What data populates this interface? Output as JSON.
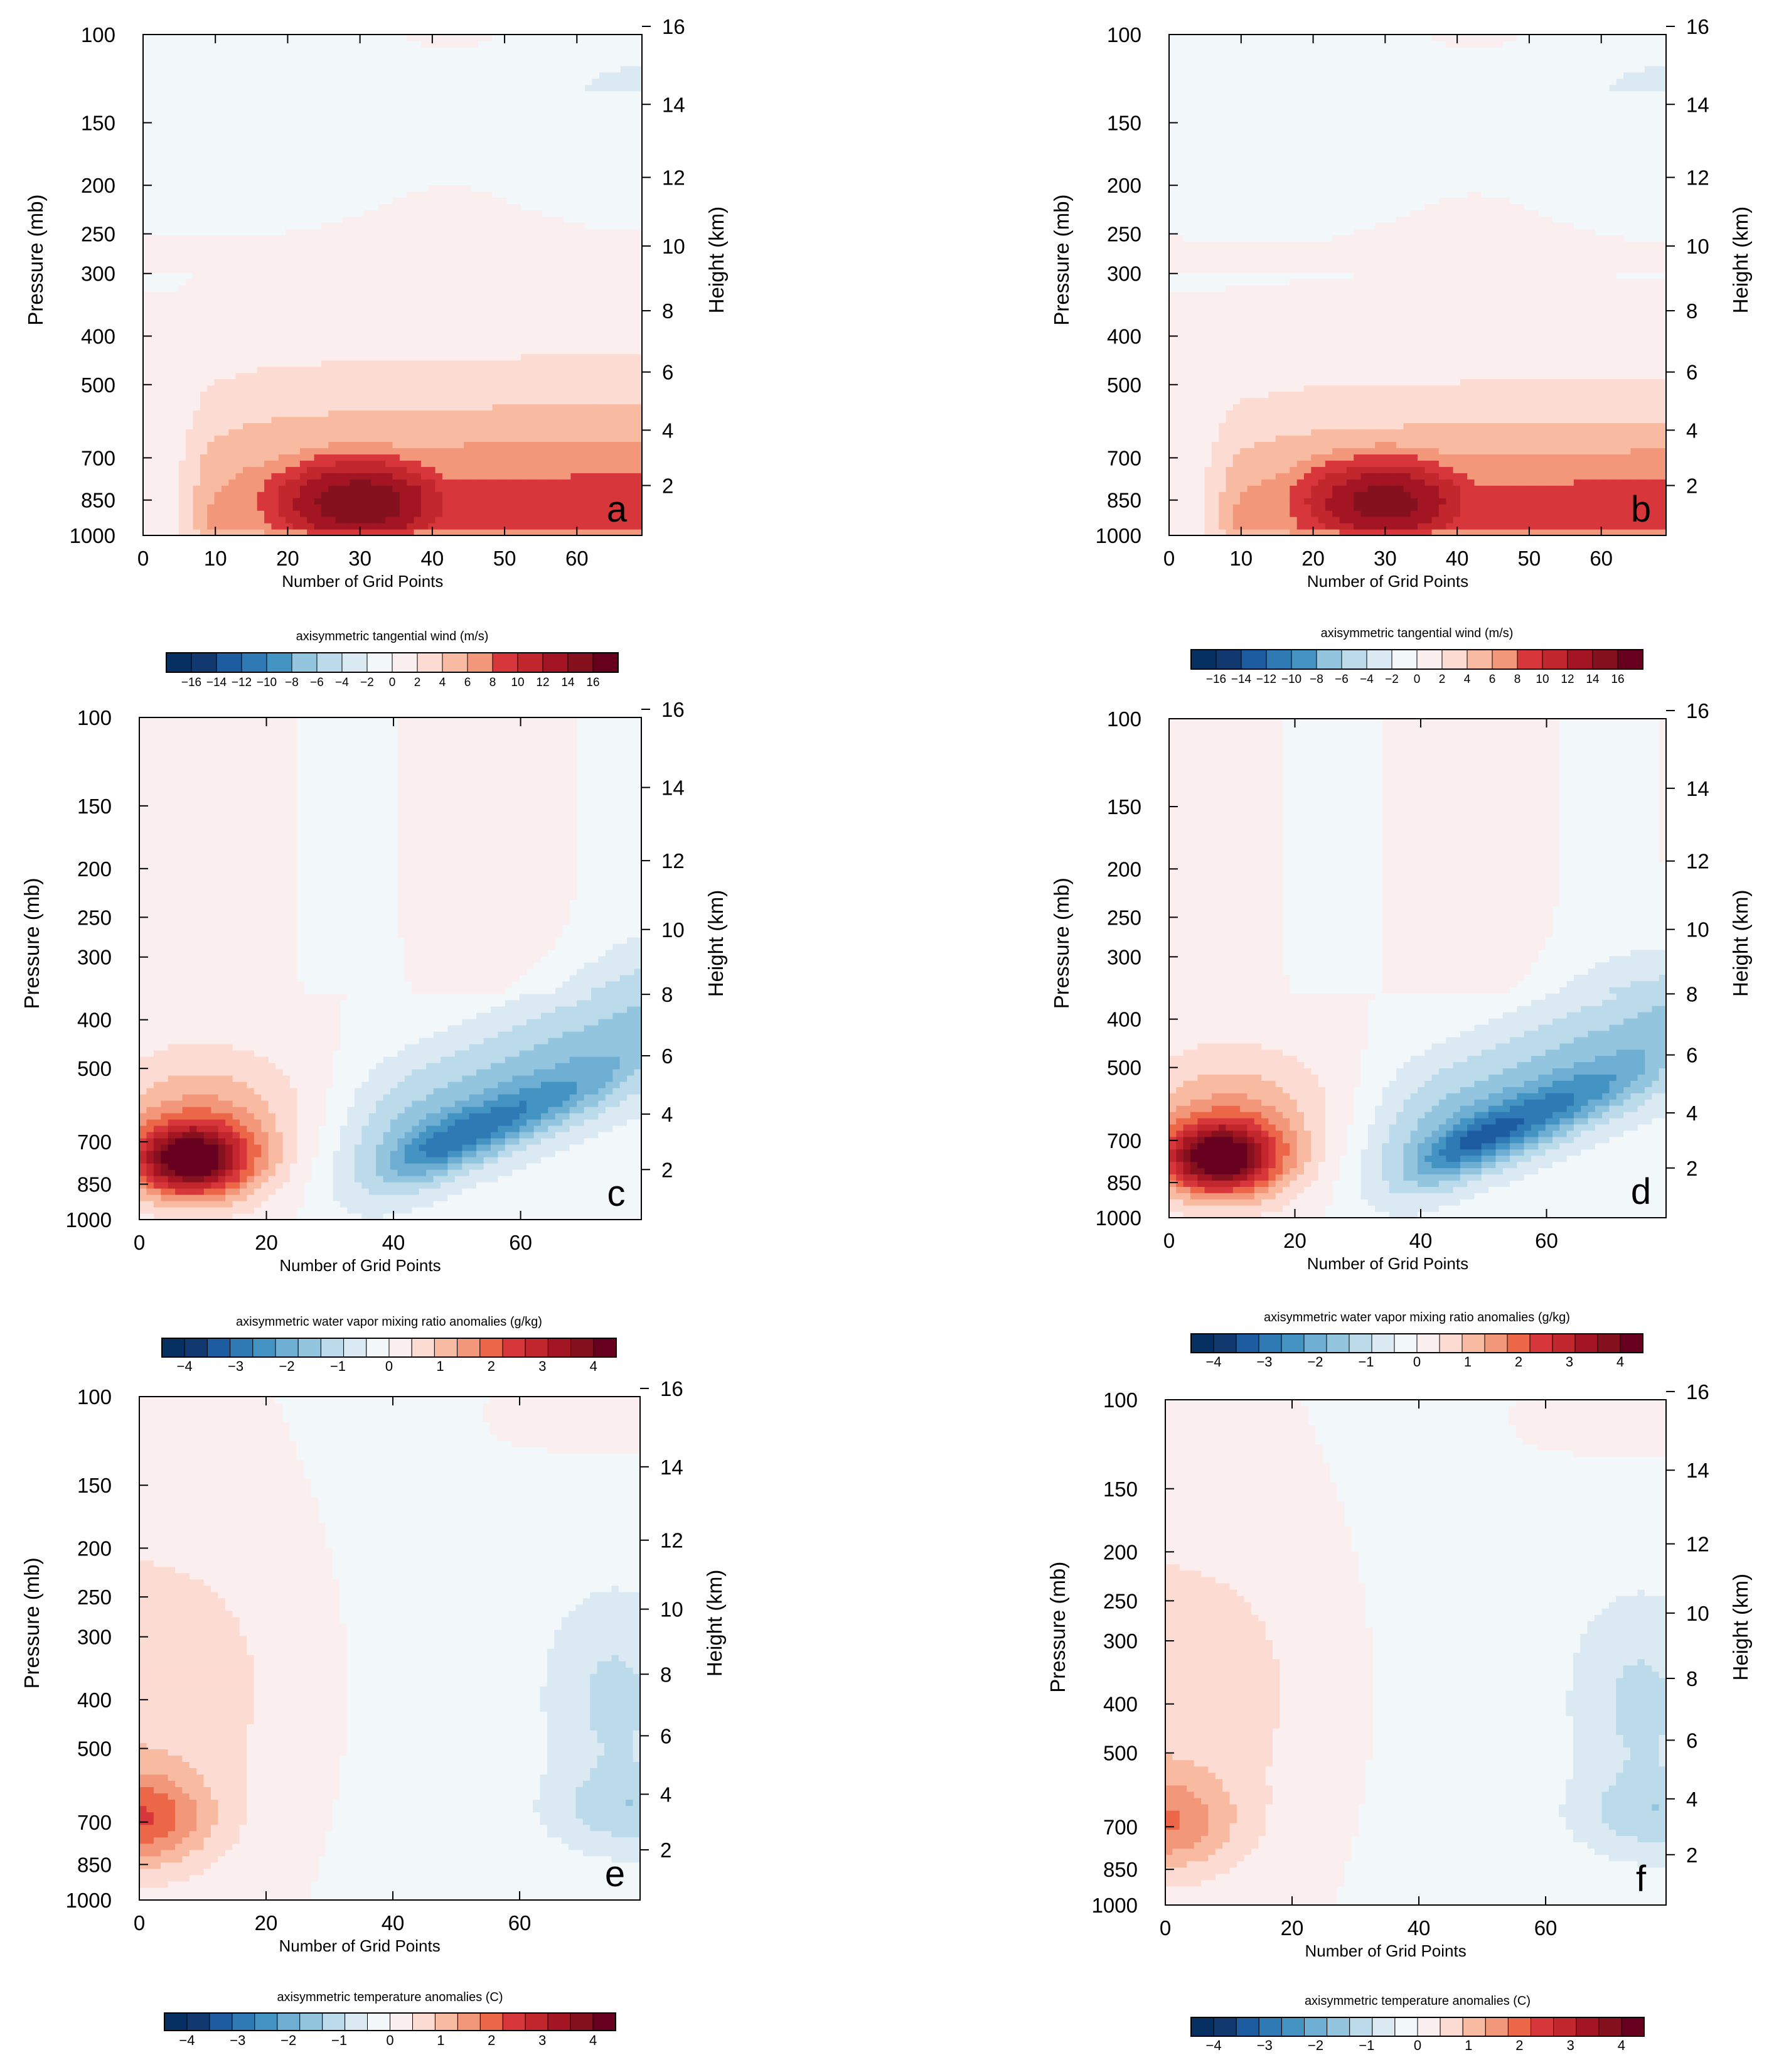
{
  "figure": {
    "title": ""
  },
  "chart_data": [
    {
      "type": "heatmap",
      "panel_label": "a",
      "variable": "axisymmetric tangential wind",
      "colorbar_title": "axisymmetric tangential wind (m/s)",
      "colorbar_tick_labels": [
        "−16",
        "−14",
        "−12",
        "−10",
        "−8",
        "−6",
        "−4",
        "−2",
        "0",
        "2",
        "4",
        "6",
        "8",
        "10",
        "12",
        "14",
        "16"
      ],
      "colorbar_levels": [
        -16,
        -14,
        -12,
        -10,
        -8,
        -6,
        -4,
        -2,
        0,
        2,
        4,
        6,
        8,
        10,
        12,
        14,
        16
      ],
      "xlabel": "Number of Grid Points",
      "ylabel": "Pressure (mb)",
      "ylabel_right": "Height (km)",
      "xlim": [
        0,
        69
      ],
      "x_ticks": [
        "0",
        "10",
        "20",
        "30",
        "40",
        "50",
        "60"
      ],
      "x_tick_values": [
        0,
        10,
        20,
        30,
        40,
        50,
        60
      ],
      "pressure_ticks": [
        "100",
        "150",
        "200",
        "250",
        "300",
        "400",
        "500",
        "700",
        "850",
        "1000"
      ],
      "pressure_tick_values": [
        100,
        150,
        200,
        250,
        300,
        400,
        500,
        700,
        850,
        1000
      ],
      "height_ticks": [
        "2",
        "4",
        "6",
        "8",
        "10",
        "12",
        "14",
        "16"
      ],
      "height_tick_values": [
        2,
        4,
        6,
        8,
        10,
        12,
        14,
        16
      ],
      "ylim_pressure": [
        1000,
        100
      ],
      "field": [
        {
          "level": 0,
          "x": [
            0,
            69
          ],
          "p": [
            400,
            1000
          ]
        },
        {
          "level": 2,
          "x": [
            2,
            69
          ],
          "p": [
            380,
            1000
          ]
        },
        {
          "level": 4,
          "x": [
            4,
            69
          ],
          "p": [
            420,
            1000
          ]
        },
        {
          "level": 6,
          "x": [
            7,
            69
          ],
          "p": [
            500,
            1000
          ]
        },
        {
          "level": 8,
          "x": [
            9,
            69
          ],
          "p": [
            620,
            1000
          ]
        },
        {
          "level": 10,
          "x": [
            11,
            50
          ],
          "p": [
            720,
            1000
          ]
        },
        {
          "level": 12,
          "x": [
            16,
            44
          ],
          "p": [
            760,
            1000
          ]
        },
        {
          "level": 14,
          "x": [
            21,
            38
          ],
          "p": [
            880,
            1000
          ]
        }
      ]
    },
    {
      "type": "heatmap",
      "panel_label": "b",
      "variable": "axisymmetric tangential wind",
      "colorbar_title": "axisymmetric tangential wind (m/s)",
      "colorbar_tick_labels": [
        "−16",
        "−14",
        "−12",
        "−10",
        "−8",
        "−6",
        "−4",
        "−2",
        "0",
        "2",
        "4",
        "6",
        "8",
        "10",
        "12",
        "14",
        "16"
      ],
      "colorbar_levels": [
        -16,
        -14,
        -12,
        -10,
        -8,
        -6,
        -4,
        -2,
        0,
        2,
        4,
        6,
        8,
        10,
        12,
        14,
        16
      ],
      "xlabel": "Number of Grid Points",
      "ylabel": "Pressure (mb)",
      "ylabel_right": "Height (km)",
      "xlim": [
        0,
        69
      ],
      "x_ticks": [
        "0",
        "10",
        "20",
        "30",
        "40",
        "50",
        "60"
      ],
      "x_tick_values": [
        0,
        10,
        20,
        30,
        40,
        50,
        60
      ],
      "pressure_ticks": [
        "100",
        "150",
        "200",
        "250",
        "300",
        "400",
        "500",
        "700",
        "850",
        "1000"
      ],
      "pressure_tick_values": [
        100,
        150,
        200,
        250,
        300,
        400,
        500,
        700,
        850,
        1000
      ],
      "height_ticks": [
        "2",
        "4",
        "6",
        "8",
        "10",
        "12",
        "14",
        "16"
      ],
      "height_tick_values": [
        2,
        4,
        6,
        8,
        10,
        12,
        14,
        16
      ],
      "ylim_pressure": [
        1000,
        100
      ],
      "field": [
        {
          "level": 0,
          "x": [
            0,
            69
          ],
          "p": [
            250,
            1000
          ]
        },
        {
          "level": 2,
          "x": [
            2,
            69
          ],
          "p": [
            330,
            1000
          ]
        },
        {
          "level": 4,
          "x": [
            4,
            69
          ],
          "p": [
            420,
            1000
          ]
        },
        {
          "level": 6,
          "x": [
            6,
            69
          ],
          "p": [
            480,
            1000
          ]
        },
        {
          "level": 8,
          "x": [
            8,
            69
          ],
          "p": [
            580,
            1000
          ]
        },
        {
          "level": 10,
          "x": [
            10,
            52
          ],
          "p": [
            690,
            1000
          ]
        },
        {
          "level": 12,
          "x": [
            15,
            46
          ],
          "p": [
            760,
            1000
          ]
        },
        {
          "level": 14,
          "x": [
            18,
            40
          ],
          "p": [
            860,
            1000
          ]
        }
      ]
    },
    {
      "type": "heatmap",
      "panel_label": "c",
      "variable": "axisymmetric water vapor mixing ratio anomalies",
      "colorbar_title": "axisymmetric water vapor mixing ratio anomalies (g/kg)",
      "colorbar_tick_labels": [
        "−4",
        "−3",
        "−2",
        "−1",
        "0",
        "1",
        "2",
        "3",
        "4"
      ],
      "colorbar_levels": [
        -4.5,
        -4,
        -3.5,
        -3,
        -2.5,
        -2,
        -1.5,
        -1,
        -0.5,
        0,
        0.5,
        1,
        1.5,
        2,
        2.5,
        3,
        3.5,
        4,
        4.5
      ],
      "xlabel": "Number of Grid Points",
      "ylabel": "Pressure (mb)",
      "ylabel_right": "Height (km)",
      "xlim": [
        0,
        79
      ],
      "x_ticks": [
        "0",
        "20",
        "40",
        "60"
      ],
      "x_tick_values": [
        0,
        20,
        40,
        60
      ],
      "pressure_ticks": [
        "100",
        "150",
        "200",
        "250",
        "300",
        "400",
        "500",
        "700",
        "850",
        "1000"
      ],
      "pressure_tick_values": [
        100,
        150,
        200,
        250,
        300,
        400,
        500,
        700,
        850,
        1000
      ],
      "height_ticks": [
        "2",
        "4",
        "6",
        "8",
        "10",
        "12",
        "14",
        "16"
      ],
      "height_tick_values": [
        2,
        4,
        6,
        8,
        10,
        12,
        14,
        16
      ],
      "ylim_pressure": [
        1000,
        100
      ]
    },
    {
      "type": "heatmap",
      "panel_label": "d",
      "variable": "axisymmetric water vapor mixing ratio anomalies",
      "colorbar_title": "axisymmetric water vapor mixing ratio anomalies (g/kg)",
      "colorbar_tick_labels": [
        "−4",
        "−3",
        "−2",
        "−1",
        "0",
        "1",
        "2",
        "3",
        "4"
      ],
      "colorbar_levels": [
        -4.5,
        -4,
        -3.5,
        -3,
        -2.5,
        -2,
        -1.5,
        -1,
        -0.5,
        0,
        0.5,
        1,
        1.5,
        2,
        2.5,
        3,
        3.5,
        4,
        4.5
      ],
      "xlabel": "Number of Grid Points",
      "ylabel": "Pressure (mb)",
      "ylabel_right": "Height (km)",
      "xlim": [
        0,
        79
      ],
      "x_ticks": [
        "0",
        "20",
        "40",
        "60"
      ],
      "x_tick_values": [
        0,
        20,
        40,
        60
      ],
      "pressure_ticks": [
        "100",
        "150",
        "200",
        "250",
        "300",
        "400",
        "500",
        "700",
        "850",
        "1000"
      ],
      "pressure_tick_values": [
        100,
        150,
        200,
        250,
        300,
        400,
        500,
        700,
        850,
        1000
      ],
      "height_ticks": [
        "2",
        "4",
        "6",
        "8",
        "10",
        "12",
        "14",
        "16"
      ],
      "height_tick_values": [
        2,
        4,
        6,
        8,
        10,
        12,
        14,
        16
      ],
      "ylim_pressure": [
        1000,
        100
      ]
    },
    {
      "type": "heatmap",
      "panel_label": "e",
      "variable": "axisymmetric temperature anomalies",
      "colorbar_title": "axisymmetric temperature anomalies (C)",
      "colorbar_tick_labels": [
        "−4",
        "−3",
        "−2",
        "−1",
        "0",
        "1",
        "2",
        "3",
        "4"
      ],
      "colorbar_levels": [
        -4.5,
        -4,
        -3.5,
        -3,
        -2.5,
        -2,
        -1.5,
        -1,
        -0.5,
        0,
        0.5,
        1,
        1.5,
        2,
        2.5,
        3,
        3.5,
        4,
        4.5
      ],
      "xlabel": "Number of Grid Points",
      "ylabel": "Pressure (mb)",
      "ylabel_right": "Height (km)",
      "xlim": [
        0,
        79
      ],
      "x_ticks": [
        "0",
        "20",
        "40",
        "60"
      ],
      "x_tick_values": [
        0,
        20,
        40,
        60
      ],
      "pressure_ticks": [
        "100",
        "150",
        "200",
        "250",
        "300",
        "400",
        "500",
        "700",
        "850",
        "1000"
      ],
      "pressure_tick_values": [
        100,
        150,
        200,
        250,
        300,
        400,
        500,
        700,
        850,
        1000
      ],
      "height_ticks": [
        "2",
        "4",
        "6",
        "8",
        "10",
        "12",
        "14",
        "16"
      ],
      "height_tick_values": [
        2,
        4,
        6,
        8,
        10,
        12,
        14,
        16
      ],
      "ylim_pressure": [
        1000,
        100
      ]
    },
    {
      "type": "heatmap",
      "panel_label": "f",
      "variable": "axisymmetric temperature anomalies",
      "colorbar_title": "axisymmetric temperature anomalies (C)",
      "colorbar_tick_labels": [
        "−4",
        "−3",
        "−2",
        "−1",
        "0",
        "1",
        "2",
        "3",
        "4"
      ],
      "colorbar_levels": [
        -4.5,
        -4,
        -3.5,
        -3,
        -2.5,
        -2,
        -1.5,
        -1,
        -0.5,
        0,
        0.5,
        1,
        1.5,
        2,
        2.5,
        3,
        3.5,
        4,
        4.5
      ],
      "xlabel": "Number of Grid Points",
      "ylabel": "Pressure (mb)",
      "ylabel_right": "Height (km)",
      "xlim": [
        0,
        79
      ],
      "x_ticks": [
        "0",
        "20",
        "40",
        "60"
      ],
      "x_tick_values": [
        0,
        20,
        40,
        60
      ],
      "pressure_ticks": [
        "100",
        "150",
        "200",
        "250",
        "300",
        "400",
        "500",
        "700",
        "850",
        "1000"
      ],
      "pressure_tick_values": [
        100,
        150,
        200,
        250,
        300,
        400,
        500,
        700,
        850,
        1000
      ],
      "height_ticks": [
        "2",
        "4",
        "6",
        "8",
        "10",
        "12",
        "14",
        "16"
      ],
      "height_tick_values": [
        2,
        4,
        6,
        8,
        10,
        12,
        14,
        16
      ],
      "ylim_pressure": [
        1000,
        100
      ]
    }
  ],
  "colormap": [
    "#053061",
    "#11396f",
    "#1d5ca1",
    "#2f79b5",
    "#4393c3",
    "#6eaed2",
    "#93c5de",
    "#bcdbea",
    "#dbeaf2",
    "#f2f7fa",
    "#fbeeee",
    "#fcdbd2",
    "#f8bba2",
    "#f3977b",
    "#eb6748",
    "#d7373a",
    "#c1272d",
    "#a31523",
    "#86111e",
    "#67001f"
  ]
}
